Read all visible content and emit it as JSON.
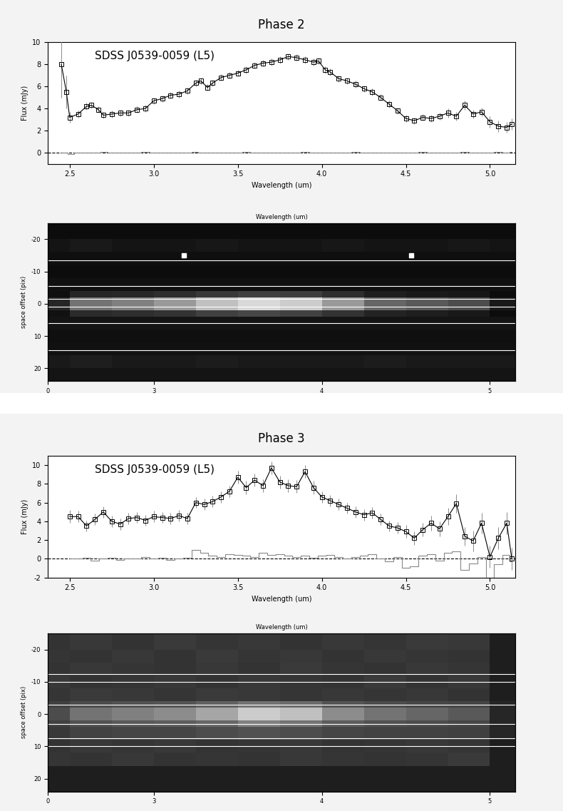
{
  "chart_data": [
    {
      "type": "line",
      "title": "Phase 2",
      "annotation": "SDSS J0539-0059 (L5)",
      "xlabel": "Wavelength (um)",
      "ylabel": "Flux (mJy)",
      "xlim": [
        2.37,
        5.15
      ],
      "xticks": [
        {
          "value": 2.5,
          "label": "2.5"
        },
        {
          "value": 3,
          "label": "3.0"
        },
        {
          "value": 3.5,
          "label": "3.5"
        },
        {
          "value": 4,
          "label": "4.0"
        },
        {
          "value": 4.5,
          "label": "4.5"
        },
        {
          "value": 5,
          "label": "5.0"
        }
      ],
      "ylim": [
        -1,
        10
      ],
      "yticks": [
        0,
        2,
        4,
        6,
        8,
        10
      ],
      "hline": 0,
      "x": [
        2.45,
        2.48,
        2.5,
        2.55,
        2.6,
        2.63,
        2.67,
        2.7,
        2.75,
        2.8,
        2.85,
        2.9,
        2.95,
        3.0,
        3.05,
        3.1,
        3.15,
        3.2,
        3.25,
        3.28,
        3.32,
        3.35,
        3.4,
        3.45,
        3.5,
        3.55,
        3.6,
        3.65,
        3.7,
        3.75,
        3.8,
        3.85,
        3.9,
        3.95,
        3.98,
        4.02,
        4.05,
        4.1,
        4.15,
        4.2,
        4.25,
        4.3,
        4.35,
        4.4,
        4.45,
        4.5,
        4.55,
        4.6,
        4.65,
        4.7,
        4.75,
        4.8,
        4.85,
        4.9,
        4.95,
        5.0,
        5.05,
        5.1,
        5.13
      ],
      "series": [
        {
          "type": "errorbar",
          "color": "#000000",
          "marker": "square",
          "values": [
            8.0,
            5.5,
            3.2,
            3.5,
            4.2,
            4.3,
            3.9,
            3.4,
            3.5,
            3.6,
            3.6,
            3.9,
            4.0,
            4.7,
            4.9,
            5.2,
            5.3,
            5.6,
            6.3,
            6.5,
            5.9,
            6.3,
            6.8,
            7.0,
            7.2,
            7.5,
            7.9,
            8.1,
            8.2,
            8.4,
            8.7,
            8.6,
            8.4,
            8.2,
            8.3,
            7.5,
            7.3,
            6.7,
            6.5,
            6.2,
            5.8,
            5.5,
            5.0,
            4.4,
            3.8,
            3.1,
            2.9,
            3.2,
            3.1,
            3.3,
            3.6,
            3.3,
            4.3,
            3.5,
            3.7,
            2.8,
            2.4,
            2.3,
            2.6
          ],
          "errors": [
            3.0,
            1.5,
            0.5,
            0.3,
            0.3,
            0.3,
            0.3,
            0.3,
            0.3,
            0.3,
            0.3,
            0.3,
            0.3,
            0.3,
            0.3,
            0.3,
            0.3,
            0.3,
            0.3,
            0.3,
            0.3,
            0.3,
            0.3,
            0.3,
            0.3,
            0.3,
            0.3,
            0.3,
            0.3,
            0.3,
            0.3,
            0.3,
            0.3,
            0.3,
            0.3,
            0.3,
            0.3,
            0.3,
            0.3,
            0.3,
            0.3,
            0.3,
            0.3,
            0.3,
            0.3,
            0.3,
            0.3,
            0.3,
            0.3,
            0.3,
            0.4,
            0.4,
            0.4,
            0.4,
            0.4,
            0.5,
            0.5,
            0.5,
            0.5
          ]
        },
        {
          "type": "step",
          "color": "#888888",
          "values": [
            0.0,
            0.0,
            -0.1,
            0.0,
            0.0,
            0.0,
            0.0,
            0.05,
            0.0,
            0.0,
            0.0,
            0.0,
            0.05,
            0.0,
            0.0,
            0.0,
            0.0,
            0.0,
            0.05,
            0.0,
            0.0,
            0.0,
            0.0,
            0.0,
            0.0,
            0.05,
            0.0,
            0.0,
            0.0,
            0.0,
            0.0,
            0.0,
            0.05,
            0.0,
            0.0,
            0.0,
            0.0,
            0.0,
            0.0,
            0.05,
            0.0,
            0.0,
            0.0,
            0.0,
            0.0,
            0.0,
            0.0,
            0.05,
            0.0,
            0.0,
            0.0,
            0.0,
            0.05,
            0.0,
            0.0,
            0.0,
            0.1,
            0.0,
            0.05
          ]
        }
      ]
    },
    {
      "type": "heatmap",
      "xlabel": "Wavelength (um)",
      "ylabel": "space offset (pix)",
      "xlim": [
        2.37,
        5.15
      ],
      "xticks": [
        3,
        4,
        5
      ],
      "xticks_bottom": [
        {
          "value": 2.37,
          "label": "0"
        }
      ],
      "ylim": [
        24,
        -25
      ],
      "yticks": [
        -20,
        -10,
        0,
        10,
        20
      ],
      "clim": [
        0,
        1
      ],
      "x_edges": [
        2.37,
        2.5,
        2.75,
        3.0,
        3.25,
        3.5,
        3.75,
        4.0,
        4.25,
        4.5,
        4.75,
        5.0,
        5.15
      ],
      "y_edges": [
        -25,
        -20,
        -16,
        -12,
        -8,
        -4,
        -2,
        2,
        4,
        8,
        12,
        16,
        20,
        24
      ],
      "cells": [
        [
          0.05,
          0.05,
          0.05,
          0.05,
          0.05,
          0.05,
          0.05,
          0.05,
          0.05,
          0.05,
          0.05,
          0.05
        ],
        [
          0.08,
          0.1,
          0.08,
          0.08,
          0.09,
          0.08,
          0.08,
          0.09,
          0.08,
          0.08,
          0.09,
          0.08
        ],
        [
          0.06,
          0.06,
          0.06,
          0.06,
          0.06,
          0.06,
          0.06,
          0.06,
          0.06,
          0.06,
          0.06,
          0.06
        ],
        [
          0.05,
          0.05,
          0.05,
          0.05,
          0.05,
          0.05,
          0.05,
          0.05,
          0.05,
          0.05,
          0.05,
          0.05
        ],
        [
          0.07,
          0.07,
          0.07,
          0.07,
          0.07,
          0.07,
          0.07,
          0.07,
          0.07,
          0.07,
          0.07,
          0.07
        ],
        [
          0.06,
          0.15,
          0.16,
          0.18,
          0.22,
          0.25,
          0.24,
          0.18,
          0.12,
          0.1,
          0.09,
          0.05
        ],
        [
          0.15,
          0.45,
          0.5,
          0.6,
          0.75,
          0.85,
          0.8,
          0.6,
          0.4,
          0.35,
          0.3,
          0.1
        ],
        [
          0.07,
          0.17,
          0.18,
          0.2,
          0.25,
          0.28,
          0.26,
          0.2,
          0.14,
          0.12,
          0.1,
          0.05
        ],
        [
          0.08,
          0.08,
          0.08,
          0.08,
          0.08,
          0.08,
          0.08,
          0.08,
          0.08,
          0.08,
          0.08,
          0.08
        ],
        [
          0.06,
          0.06,
          0.06,
          0.06,
          0.06,
          0.06,
          0.06,
          0.06,
          0.06,
          0.06,
          0.06,
          0.06
        ],
        [
          0.07,
          0.07,
          0.07,
          0.07,
          0.07,
          0.07,
          0.07,
          0.07,
          0.07,
          0.07,
          0.07,
          0.07
        ],
        [
          0.1,
          0.12,
          0.1,
          0.1,
          0.11,
          0.1,
          0.1,
          0.1,
          0.11,
          0.1,
          0.1,
          0.1
        ],
        [
          0.08,
          0.08,
          0.08,
          0.08,
          0.08,
          0.08,
          0.08,
          0.08,
          0.08,
          0.08,
          0.08,
          0.08
        ]
      ],
      "hlines": [
        -13.5,
        -5.5,
        -1.5,
        1,
        6,
        14.5
      ],
      "hot_pixels": {
        "x": [
          3.18,
          4.53
        ],
        "y": [
          -15,
          -15
        ]
      }
    },
    {
      "type": "line",
      "title": "Phase 3",
      "annotation": "SDSS J0539-0059 (L5)",
      "xlabel": "Wavelength (um)",
      "ylabel": "Flux (mJy)",
      "xlim": [
        2.37,
        5.15
      ],
      "xticks": [
        {
          "value": 2.5,
          "label": "2.5"
        },
        {
          "value": 3,
          "label": "3.0"
        },
        {
          "value": 3.5,
          "label": "3.5"
        },
        {
          "value": 4,
          "label": "4.0"
        },
        {
          "value": 4.5,
          "label": "4.5"
        },
        {
          "value": 5,
          "label": "5.0"
        }
      ],
      "ylim": [
        -2,
        11
      ],
      "yticks": [
        -2,
        0,
        2,
        4,
        6,
        8,
        10
      ],
      "hline": 0,
      "x": [
        2.5,
        2.55,
        2.6,
        2.65,
        2.7,
        2.75,
        2.8,
        2.85,
        2.9,
        2.95,
        3.0,
        3.05,
        3.1,
        3.15,
        3.2,
        3.25,
        3.3,
        3.35,
        3.4,
        3.45,
        3.5,
        3.55,
        3.6,
        3.65,
        3.7,
        3.75,
        3.8,
        3.85,
        3.9,
        3.95,
        4.0,
        4.05,
        4.1,
        4.15,
        4.2,
        4.25,
        4.3,
        4.35,
        4.4,
        4.45,
        4.5,
        4.55,
        4.6,
        4.65,
        4.7,
        4.75,
        4.8,
        4.85,
        4.9,
        4.95,
        5.0,
        5.05,
        5.1,
        5.13
      ],
      "series": [
        {
          "type": "errorbar",
          "color": "#000000",
          "marker": "square",
          "values": [
            4.5,
            4.5,
            3.5,
            4.2,
            5.0,
            4.0,
            3.7,
            4.3,
            4.4,
            4.1,
            4.5,
            4.4,
            4.3,
            4.6,
            4.3,
            6.0,
            5.8,
            6.1,
            6.6,
            7.2,
            8.7,
            7.6,
            8.4,
            7.8,
            9.7,
            8.2,
            7.8,
            7.7,
            9.3,
            7.6,
            6.6,
            6.2,
            5.8,
            5.4,
            5.0,
            4.7,
            4.9,
            4.2,
            3.5,
            3.3,
            2.9,
            2.2,
            3.1,
            3.8,
            3.2,
            4.5,
            5.9,
            2.4,
            1.9,
            3.8,
            0.2,
            2.2,
            3.8,
            0.0
          ],
          "errors": [
            0.7,
            0.6,
            0.6,
            0.6,
            0.6,
            0.6,
            0.6,
            0.6,
            0.6,
            0.6,
            0.6,
            0.6,
            0.6,
            0.6,
            0.6,
            0.6,
            0.6,
            0.6,
            0.6,
            0.6,
            0.7,
            0.7,
            0.7,
            0.7,
            0.7,
            0.7,
            0.7,
            0.7,
            0.7,
            0.7,
            0.6,
            0.6,
            0.6,
            0.6,
            0.6,
            0.6,
            0.6,
            0.6,
            0.6,
            0.6,
            0.7,
            0.7,
            0.7,
            0.8,
            0.8,
            0.9,
            1.0,
            1.0,
            1.1,
            1.1,
            1.2,
            1.2,
            1.2,
            1.2
          ]
        },
        {
          "type": "step",
          "color": "#888888",
          "values": [
            0.0,
            0.0,
            0.1,
            -0.2,
            0.0,
            0.1,
            -0.1,
            0.0,
            0.0,
            0.2,
            0.0,
            0.1,
            -0.1,
            0.0,
            0.1,
            0.9,
            0.6,
            0.3,
            0.2,
            0.5,
            0.4,
            0.3,
            0.2,
            0.6,
            0.4,
            0.5,
            0.3,
            0.2,
            0.3,
            0.1,
            0.3,
            0.4,
            0.2,
            0.0,
            0.2,
            0.3,
            0.5,
            0.0,
            -0.3,
            0.2,
            -1.0,
            -0.8,
            0.3,
            0.5,
            -0.2,
            0.6,
            0.8,
            -1.2,
            -0.5,
            0.2,
            -2.0,
            -0.6,
            0.4,
            -0.3
          ]
        }
      ]
    },
    {
      "type": "heatmap",
      "xlabel": "Wavelength (um)",
      "ylabel": "space offset (pix)",
      "xlim": [
        2.37,
        5.15
      ],
      "xticks": [
        3,
        4,
        5
      ],
      "xticks_bottom": [
        {
          "value": 2.37,
          "label": "0"
        }
      ],
      "ylim": [
        24,
        -25
      ],
      "yticks": [
        -20,
        -10,
        0,
        10,
        20
      ],
      "clim": [
        0,
        1
      ],
      "x_edges": [
        2.37,
        2.5,
        2.75,
        3.0,
        3.25,
        3.5,
        3.75,
        4.0,
        4.25,
        4.5,
        4.75,
        5.0,
        5.15
      ],
      "y_edges": [
        -25,
        -20,
        -16,
        -12,
        -8,
        -4,
        -2,
        2,
        4,
        8,
        12,
        16,
        20,
        24
      ],
      "cells": [
        [
          0.2,
          0.22,
          0.2,
          0.23,
          0.21,
          0.22,
          0.2,
          0.22,
          0.21,
          0.23,
          0.22,
          0.12
        ],
        [
          0.21,
          0.2,
          0.22,
          0.2,
          0.23,
          0.21,
          0.22,
          0.2,
          0.22,
          0.21,
          0.2,
          0.12
        ],
        [
          0.2,
          0.22,
          0.21,
          0.2,
          0.22,
          0.2,
          0.23,
          0.21,
          0.2,
          0.22,
          0.21,
          0.12
        ],
        [
          0.22,
          0.2,
          0.21,
          0.22,
          0.2,
          0.22,
          0.21,
          0.2,
          0.23,
          0.2,
          0.22,
          0.12
        ],
        [
          0.21,
          0.23,
          0.22,
          0.21,
          0.23,
          0.22,
          0.21,
          0.22,
          0.21,
          0.22,
          0.2,
          0.12
        ],
        [
          0.25,
          0.3,
          0.32,
          0.33,
          0.38,
          0.45,
          0.42,
          0.33,
          0.3,
          0.28,
          0.27,
          0.15
        ],
        [
          0.3,
          0.45,
          0.5,
          0.55,
          0.65,
          0.8,
          0.75,
          0.55,
          0.45,
          0.4,
          0.35,
          0.15
        ],
        [
          0.25,
          0.32,
          0.35,
          0.36,
          0.4,
          0.5,
          0.45,
          0.36,
          0.32,
          0.3,
          0.28,
          0.15
        ],
        [
          0.22,
          0.26,
          0.27,
          0.27,
          0.3,
          0.32,
          0.3,
          0.27,
          0.26,
          0.26,
          0.25,
          0.15
        ],
        [
          0.2,
          0.22,
          0.21,
          0.22,
          0.2,
          0.21,
          0.22,
          0.2,
          0.21,
          0.22,
          0.21,
          0.12
        ],
        [
          0.21,
          0.2,
          0.22,
          0.2,
          0.21,
          0.2,
          0.22,
          0.21,
          0.2,
          0.21,
          0.23,
          0.12
        ],
        [
          0.12,
          0.12,
          0.12,
          0.12,
          0.12,
          0.12,
          0.12,
          0.12,
          0.12,
          0.12,
          0.12,
          0.12
        ],
        [
          0.12,
          0.12,
          0.12,
          0.12,
          0.12,
          0.12,
          0.12,
          0.12,
          0.12,
          0.12,
          0.12,
          0.12
        ]
      ],
      "hlines": [
        -12.5,
        -10,
        -3,
        3,
        7.5,
        10
      ]
    }
  ]
}
